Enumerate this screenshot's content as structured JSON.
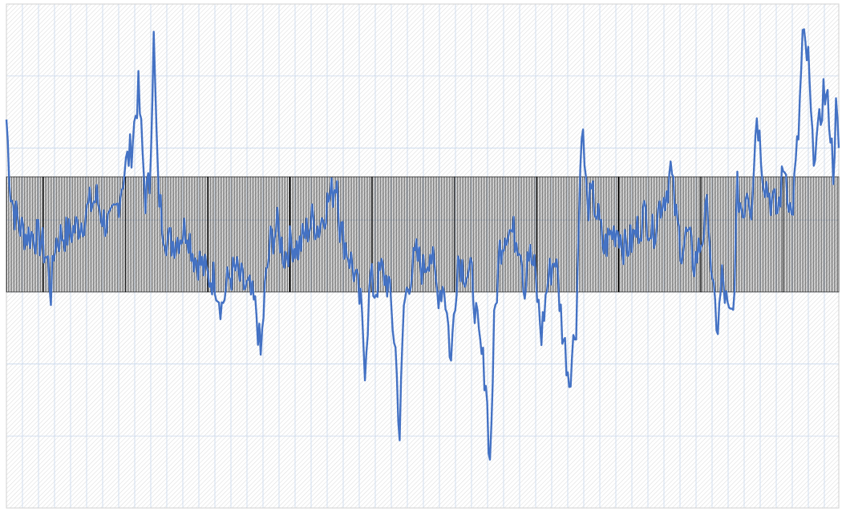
{
  "chart_data": {
    "type": "line",
    "title": "",
    "xlabel": "",
    "ylabel": "",
    "grid": true,
    "legend": "none",
    "x_range": [
      0,
      599
    ],
    "ylim": [
      0,
      7
    ],
    "band": {
      "from": 3.0,
      "to": 4.6
    },
    "colors": {
      "line": "#4472c4",
      "grid": "#c9d8ec",
      "band_hatch": "#000000",
      "background_hatch": "#d9d9d9"
    },
    "series": [
      {
        "keypoints": [
          [
            0,
            5.4
          ],
          [
            3,
            4.4
          ],
          [
            6,
            4.1
          ],
          [
            10,
            3.9
          ],
          [
            14,
            3.8
          ],
          [
            20,
            3.8
          ],
          [
            25,
            3.7
          ],
          [
            30,
            3.4
          ],
          [
            32,
            3.0
          ],
          [
            35,
            3.7
          ],
          [
            40,
            3.8
          ],
          [
            45,
            3.8
          ],
          [
            50,
            3.9
          ],
          [
            55,
            4.0
          ],
          [
            60,
            4.2
          ],
          [
            65,
            4.3
          ],
          [
            70,
            4.0
          ],
          [
            75,
            3.9
          ],
          [
            80,
            4.2
          ],
          [
            85,
            4.7
          ],
          [
            90,
            5.0
          ],
          [
            95,
            5.8
          ],
          [
            97,
            5.2
          ],
          [
            100,
            4.3
          ],
          [
            103,
            4.5
          ],
          [
            106,
            6.5
          ],
          [
            109,
            4.5
          ],
          [
            112,
            4.0
          ],
          [
            116,
            3.7
          ],
          [
            120,
            3.7
          ],
          [
            125,
            3.8
          ],
          [
            130,
            3.9
          ],
          [
            135,
            3.5
          ],
          [
            140,
            3.4
          ],
          [
            145,
            3.2
          ],
          [
            150,
            3.2
          ],
          [
            155,
            2.8
          ],
          [
            160,
            3.2
          ],
          [
            165,
            3.3
          ],
          [
            170,
            3.1
          ],
          [
            175,
            3.0
          ],
          [
            180,
            2.7
          ],
          [
            183,
            2.1
          ],
          [
            186,
            3.0
          ],
          [
            190,
            3.7
          ],
          [
            195,
            3.9
          ],
          [
            200,
            3.5
          ],
          [
            205,
            3.7
          ],
          [
            210,
            3.6
          ],
          [
            215,
            3.8
          ],
          [
            220,
            4.0
          ],
          [
            225,
            3.9
          ],
          [
            230,
            4.2
          ],
          [
            235,
            4.4
          ],
          [
            238,
            4.6
          ],
          [
            240,
            3.9
          ],
          [
            245,
            3.6
          ],
          [
            250,
            3.3
          ],
          [
            255,
            2.8
          ],
          [
            258,
            2.0
          ],
          [
            262,
            3.2
          ],
          [
            265,
            3.0
          ],
          [
            270,
            3.3
          ],
          [
            275,
            3.1
          ],
          [
            280,
            2.2
          ],
          [
            283,
            1.0
          ],
          [
            286,
            2.8
          ],
          [
            290,
            3.2
          ],
          [
            295,
            3.5
          ],
          [
            300,
            3.3
          ],
          [
            305,
            3.6
          ],
          [
            310,
            3.0
          ],
          [
            315,
            3.1
          ],
          [
            318,
            2.5
          ],
          [
            320,
            2.0
          ],
          [
            322,
            2.7
          ],
          [
            325,
            3.5
          ],
          [
            330,
            3.3
          ],
          [
            335,
            3.2
          ],
          [
            340,
            2.3
          ],
          [
            345,
            1.8
          ],
          [
            348,
            0.6
          ],
          [
            351,
            2.5
          ],
          [
            355,
            3.6
          ],
          [
            360,
            3.9
          ],
          [
            365,
            3.8
          ],
          [
            370,
            3.7
          ],
          [
            373,
            3.0
          ],
          [
            375,
            3.6
          ],
          [
            380,
            3.3
          ],
          [
            385,
            2.4
          ],
          [
            388,
            2.9
          ],
          [
            390,
            3.2
          ],
          [
            395,
            3.5
          ],
          [
            400,
            2.5
          ],
          [
            405,
            1.8
          ],
          [
            410,
            2.6
          ],
          [
            414,
            5.4
          ],
          [
            418,
            4.2
          ],
          [
            422,
            4.3
          ],
          [
            426,
            4.0
          ],
          [
            430,
            3.6
          ],
          [
            435,
            3.8
          ],
          [
            440,
            3.9
          ],
          [
            445,
            3.6
          ],
          [
            450,
            3.7
          ],
          [
            455,
            3.9
          ],
          [
            460,
            4.1
          ],
          [
            465,
            3.8
          ],
          [
            470,
            4.2
          ],
          [
            475,
            4.4
          ],
          [
            478,
            4.7
          ],
          [
            482,
            4.0
          ],
          [
            486,
            3.6
          ],
          [
            490,
            3.8
          ],
          [
            495,
            3.4
          ],
          [
            500,
            3.7
          ],
          [
            505,
            4.2
          ],
          [
            508,
            3.0
          ],
          [
            512,
            2.5
          ],
          [
            515,
            3.2
          ],
          [
            520,
            2.6
          ],
          [
            523,
            2.7
          ],
          [
            526,
            4.4
          ],
          [
            530,
            4.1
          ],
          [
            533,
            4.5
          ],
          [
            536,
            4.2
          ],
          [
            540,
            5.5
          ],
          [
            545,
            4.6
          ],
          [
            550,
            4.3
          ],
          [
            555,
            4.1
          ],
          [
            560,
            4.8
          ],
          [
            565,
            4.0
          ],
          [
            570,
            5.2
          ],
          [
            573,
            6.5
          ],
          [
            577,
            6.2
          ],
          [
            580,
            5.0
          ],
          [
            584,
            5.1
          ],
          [
            588,
            5.8
          ],
          [
            592,
            5.5
          ],
          [
            595,
            4.7
          ],
          [
            597,
            5.5
          ],
          [
            599,
            5.0
          ]
        ]
      }
    ]
  }
}
